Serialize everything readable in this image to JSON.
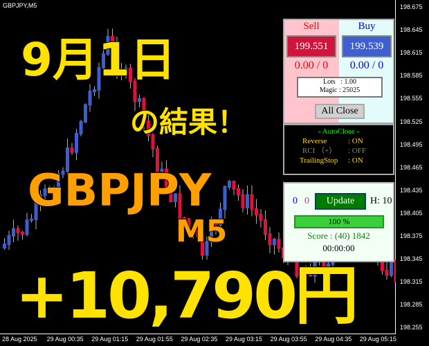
{
  "chart": {
    "symbol": "GBPJPY,M5",
    "bull_color": "#3b5fd0",
    "bear_color": "#dc143c"
  },
  "price_axis": [
    "198.675",
    "198.645",
    "198.615",
    "198.585",
    "198.555",
    "198.525",
    "198.495",
    "198.465",
    "198.435",
    "198.405",
    "198.375",
    "198.345",
    "198.315",
    "198.285",
    "198.255"
  ],
  "time_axis": [
    "28 Aug 2025",
    "29 Aug 00:35",
    "29 Aug 01:15",
    "29 Aug 01:55",
    "29 Aug 02:35",
    "29 Aug 03:15",
    "29 Aug 03:55",
    "29 Aug 04:35",
    "29 Aug 05:15"
  ],
  "overlay": {
    "date": "9月1日",
    "result": "の結果！",
    "pair": "GBPJPY",
    "timeframe": "M5",
    "profit": "+10,790円"
  },
  "trade_panel": {
    "sell_label": "Sell",
    "buy_label": "Buy",
    "sell_price": "199.551",
    "buy_price": "199.539",
    "sell_pnl": "0.00 / 0",
    "buy_pnl": "0.00 / 0",
    "lots": "Lots   : 1.00",
    "magic": "Magic : 25025",
    "all_close": "All Close"
  },
  "autoclose_panel": {
    "title": "- AutoClose -",
    "rows": [
      {
        "label": "Reverse",
        "value": ": ON"
      },
      {
        "label": "RCI （+）",
        "value": ": OFF"
      },
      {
        "label": "TrailingStop",
        "value": ": ON"
      }
    ]
  },
  "status_panel": {
    "count_blue": "0",
    "count_magenta": "0",
    "update": "Update",
    "h": "H: 10",
    "progress_label": "100 %",
    "progress": 100,
    "score": "Score : (40) 1842",
    "timer": "00:00:00"
  }
}
